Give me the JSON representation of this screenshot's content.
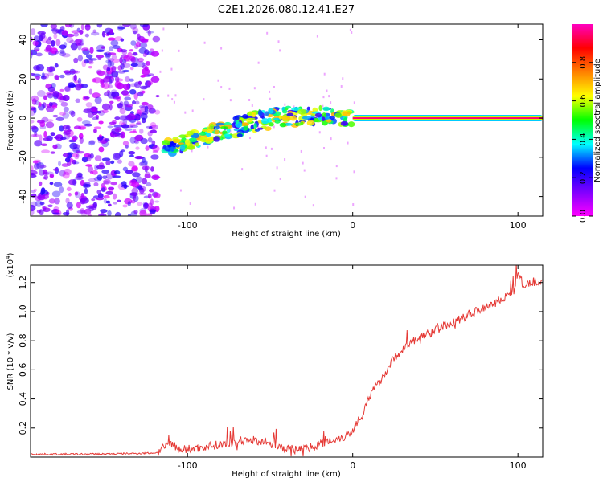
{
  "figure_title": "C2E1.2026.080.12.41.E27",
  "chart_data": [
    {
      "type": "heatmap",
      "title": "C2E1.2026.080.12.41.E27",
      "xlabel": "Height of straight line (km)",
      "ylabel": "Frequency (Hz)",
      "xlim": [
        -195,
        115
      ],
      "ylim": [
        -50,
        48
      ],
      "x_ticks": [
        -100,
        0,
        100
      ],
      "y_ticks": [
        -40,
        -20,
        0,
        20,
        40
      ],
      "colorbar": {
        "label": "Normalized spectral amplitude",
        "range": [
          0,
          1
        ],
        "ticks": [
          0.0,
          0.2,
          0.4,
          0.6,
          0.8
        ],
        "tick_labels": [
          "0.0",
          "0.2",
          "0.4",
          "0.6",
          "0.8"
        ],
        "colormap": [
          "#ff00ff",
          "#8000ff",
          "#0000ff",
          "#00ffff",
          "#00ff00",
          "#ffff00",
          "#ff8000",
          "#ff0000",
          "#ff00c0"
        ]
      },
      "features": [
        {
          "name": "noise",
          "x_range": [
            -195,
            -118
          ],
          "y_range": [
            -50,
            48
          ],
          "amplitude": 0.15
        },
        {
          "name": "signal-ramp",
          "points": [
            [
              -115,
              -16
            ],
            [
              -100,
              -12
            ],
            [
              -80,
              -7
            ],
            [
              -60,
              -2
            ],
            [
              -40,
              1
            ],
            [
              -20,
              1
            ],
            [
              -5,
              0
            ],
            [
              0,
              0
            ]
          ],
          "amplitude": 0.45
        },
        {
          "name": "carrier-line",
          "x_range": [
            0,
            115
          ],
          "frequency": 0,
          "amplitude": 0.95
        }
      ]
    },
    {
      "type": "line",
      "xlabel": "Height of straight line (km)",
      "ylabel": "SNR (10 * v/v)",
      "y_scale_label": "(x10",
      "y_scale_exp": "4",
      "xlim": [
        -195,
        115
      ],
      "ylim": [
        0,
        1.32
      ],
      "x_ticks": [
        -100,
        0,
        100
      ],
      "y_ticks": [
        0.2,
        0.4,
        0.6,
        0.8,
        1.0,
        1.2
      ],
      "y_tick_labels": [
        "0.2",
        "0.4",
        "0.6",
        "0.8",
        "1.0",
        "1.2"
      ],
      "series": [
        {
          "name": "SNR",
          "color": "#e53935",
          "x": [
            -195,
            -160,
            -130,
            -118,
            -110,
            -105,
            -95,
            -85,
            -75,
            -65,
            -55,
            -45,
            -35,
            -25,
            -18,
            -12,
            -5,
            0,
            3,
            8,
            12,
            18,
            25,
            32,
            40,
            48,
            55,
            62,
            70,
            78,
            85,
            92,
            98,
            100,
            103,
            108,
            115
          ],
          "y": [
            0.02,
            0.02,
            0.025,
            0.03,
            0.1,
            0.05,
            0.06,
            0.08,
            0.09,
            0.12,
            0.11,
            0.07,
            0.05,
            0.07,
            0.1,
            0.12,
            0.14,
            0.18,
            0.25,
            0.35,
            0.45,
            0.55,
            0.68,
            0.76,
            0.82,
            0.86,
            0.9,
            0.93,
            0.98,
            1.02,
            1.06,
            1.1,
            1.15,
            1.28,
            1.18,
            1.2,
            1.22
          ],
          "noise": 0.03
        }
      ]
    }
  ]
}
